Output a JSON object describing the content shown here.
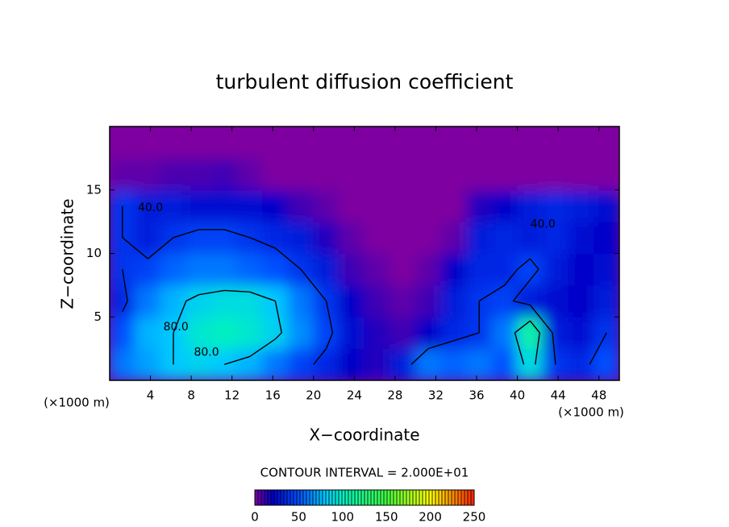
{
  "chart_data": {
    "type": "contour",
    "title": "turbulent diffusion coefficient",
    "x_label": "X−coordinate",
    "y_label": "Z−coordinate",
    "x_unit": "(×1000 m)",
    "x_unit_right": "(×1000 m)",
    "contour_interval_label": "CONTOUR INTERVAL = 2.000E+01",
    "xlim": [
      0,
      50
    ],
    "ylim": [
      0,
      20
    ],
    "xticks": [
      4,
      8,
      12,
      16,
      20,
      24,
      28,
      32,
      36,
      40,
      44,
      48
    ],
    "yticks": [
      5,
      10,
      15
    ],
    "x": [
      1.25,
      3.75,
      6.25,
      8.75,
      11.25,
      13.75,
      16.25,
      18.75,
      21.25,
      23.75,
      26.25,
      28.75,
      31.25,
      33.75,
      36.25,
      38.75,
      41.25,
      43.75,
      46.25,
      48.75
    ],
    "y": [
      1.25,
      3.75,
      6.25,
      8.75,
      11.25,
      13.75,
      16.25,
      18.75
    ],
    "z": [
      [
        60,
        70,
        80,
        85,
        80,
        75,
        60,
        45,
        35,
        20,
        15,
        30,
        60,
        55,
        60,
        50,
        90,
        40,
        35,
        50
      ],
      [
        50,
        75,
        80,
        95,
        100,
        95,
        85,
        65,
        45,
        25,
        15,
        10,
        20,
        35,
        40,
        60,
        110,
        30,
        25,
        40
      ],
      [
        35,
        60,
        75,
        85,
        90,
        90,
        80,
        60,
        40,
        20,
        10,
        5,
        10,
        30,
        40,
        45,
        30,
        25,
        20,
        30
      ],
      [
        40,
        45,
        55,
        60,
        60,
        55,
        50,
        40,
        30,
        10,
        5,
        0,
        5,
        20,
        35,
        35,
        45,
        30,
        20,
        25
      ],
      [
        40,
        30,
        40,
        45,
        45,
        40,
        35,
        30,
        15,
        5,
        0,
        0,
        0,
        5,
        30,
        35,
        30,
        35,
        25,
        20
      ],
      [
        40,
        30,
        30,
        25,
        25,
        25,
        20,
        10,
        5,
        0,
        0,
        0,
        0,
        0,
        15,
        20,
        30,
        35,
        30,
        25
      ],
      [
        5,
        5,
        8,
        8,
        10,
        5,
        0,
        0,
        0,
        0,
        0,
        0,
        0,
        0,
        0,
        0,
        0,
        0,
        0,
        0
      ],
      [
        0,
        0,
        0,
        0,
        0,
        0,
        0,
        0,
        0,
        0,
        0,
        0,
        0,
        0,
        0,
        0,
        0,
        0,
        0,
        0
      ]
    ],
    "contour_levels": [
      40,
      80
    ],
    "contour_labels": [
      {
        "text": "40.0",
        "x": 4,
        "y": 13.6
      },
      {
        "text": "80.0",
        "x": 6.5,
        "y": 4.2
      },
      {
        "text": "80.0",
        "x": 9.5,
        "y": 2.2
      },
      {
        "text": "40.0",
        "x": 42.5,
        "y": 12.3
      }
    ],
    "colorscale": [
      [
        0,
        "#7f00a0"
      ],
      [
        20,
        "#0000c8"
      ],
      [
        50,
        "#0050ff"
      ],
      [
        80,
        "#00c8ff"
      ],
      [
        100,
        "#00f0c0"
      ],
      [
        150,
        "#40ff40"
      ],
      [
        200,
        "#ffff00"
      ],
      [
        250,
        "#ff2000"
      ]
    ],
    "colorbar_lim": [
      0,
      250
    ],
    "colorbar_ticks": [
      0,
      50,
      100,
      150,
      200,
      250
    ]
  }
}
